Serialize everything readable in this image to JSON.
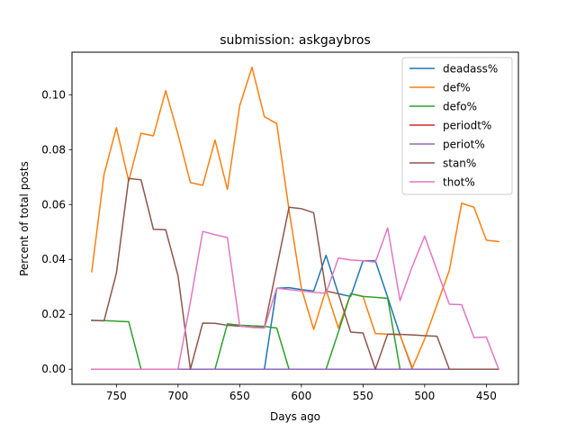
{
  "chart_data": {
    "type": "line",
    "title": "submission: askgaybros",
    "xlabel": "Days ago",
    "ylabel": "Percent of total posts",
    "x_inverted": true,
    "xlim": [
      786,
      424
    ],
    "ylim": [
      -0.0055,
      0.1155
    ],
    "xticks": [
      750,
      700,
      650,
      600,
      550,
      500,
      450
    ],
    "yticks": [
      0.0,
      0.02,
      0.04,
      0.06,
      0.08,
      0.1
    ],
    "ytick_labels": [
      "0.00",
      "0.02",
      "0.04",
      "0.06",
      "0.08",
      "0.10"
    ],
    "grid": false,
    "legend_position": "upper right",
    "x": [
      770,
      760,
      750,
      740,
      730,
      720,
      710,
      700,
      690,
      680,
      670,
      660,
      650,
      640,
      630,
      620,
      610,
      600,
      590,
      580,
      570,
      560,
      550,
      540,
      530,
      520,
      510,
      500,
      490,
      480,
      470,
      460,
      450,
      440
    ],
    "series": [
      {
        "name": "deadass%",
        "color": "#1f77b4",
        "values": [
          0,
          0,
          0,
          0,
          0,
          0,
          0,
          0,
          0,
          0,
          0,
          0,
          0,
          0,
          0,
          0.0295,
          0.0297,
          0.029,
          0.0285,
          0.0415,
          0.0275,
          0.0265,
          0.0395,
          0.0395,
          0.0262,
          0.0125,
          0,
          0,
          0,
          0,
          0,
          0,
          0,
          0
        ]
      },
      {
        "name": "def%",
        "color": "#ff7f0e",
        "values": [
          0.0355,
          0.071,
          0.088,
          0.0685,
          0.086,
          0.085,
          0.1015,
          0.0855,
          0.068,
          0.067,
          0.0835,
          0.0655,
          0.096,
          0.11,
          0.092,
          0.0895,
          0.058,
          0.0295,
          0.0145,
          0.029,
          0.015,
          0.0275,
          0.0265,
          0.013,
          0.0128,
          0.0125,
          0.0005,
          0.011,
          0.0235,
          0.036,
          0.0605,
          0.059,
          0.047,
          0.0465
        ]
      },
      {
        "name": "defo%",
        "color": "#2ca02c",
        "values": [
          0.0178,
          0.0177,
          0.0175,
          0.0173,
          0,
          0,
          0,
          0,
          0,
          0,
          0,
          0.0165,
          0.016,
          0.0158,
          0.0156,
          0.015,
          0,
          0,
          0,
          0,
          0.0135,
          0.0275,
          0.0265,
          0.0262,
          0.0258,
          0,
          0,
          0,
          0,
          0,
          0,
          0,
          0,
          0
        ]
      },
      {
        "name": "periodt%",
        "color": "#d62728",
        "values": [
          0,
          0,
          0,
          0,
          0,
          0,
          0,
          0,
          0,
          0,
          0,
          0,
          0,
          0,
          0,
          0,
          0,
          0,
          0,
          0,
          0,
          0,
          0,
          0,
          0,
          0,
          0,
          0,
          0,
          0,
          0,
          0,
          0,
          0
        ]
      },
      {
        "name": "periot%",
        "color": "#9467bd",
        "values": [
          0,
          0,
          0,
          0,
          0,
          0,
          0,
          0,
          0,
          0,
          0,
          0,
          0,
          0,
          0,
          0,
          0,
          0,
          0,
          0,
          0,
          0,
          0,
          0,
          0,
          0,
          0,
          0,
          0,
          0,
          0,
          0,
          0,
          0
        ]
      },
      {
        "name": "stan%",
        "color": "#8c564b",
        "values": [
          0.0178,
          0.0176,
          0.035,
          0.0695,
          0.069,
          0.051,
          0.0508,
          0.034,
          0,
          0.0168,
          0.0167,
          0.016,
          0.0157,
          0.0153,
          0.0152,
          0.037,
          0.059,
          0.0585,
          0.057,
          0.0285,
          0.0275,
          0.0135,
          0.0132,
          0,
          0.0128,
          0.0127,
          0.0125,
          0.0122,
          0.012,
          0,
          0,
          0,
          0,
          0
        ]
      },
      {
        "name": "thot%",
        "color": "#e377c2",
        "values": [
          0,
          0,
          0,
          0,
          0,
          0,
          0,
          0,
          0.0245,
          0.0502,
          0.049,
          0.048,
          0.0158,
          0.0152,
          0.015,
          0.0295,
          0.029,
          0.0285,
          0.028,
          0.0277,
          0.0405,
          0.0398,
          0.0395,
          0.039,
          0.0515,
          0.025,
          0.0375,
          0.0485,
          0.036,
          0.0237,
          0.0235,
          0.0115,
          0.0117,
          0
        ]
      }
    ]
  }
}
